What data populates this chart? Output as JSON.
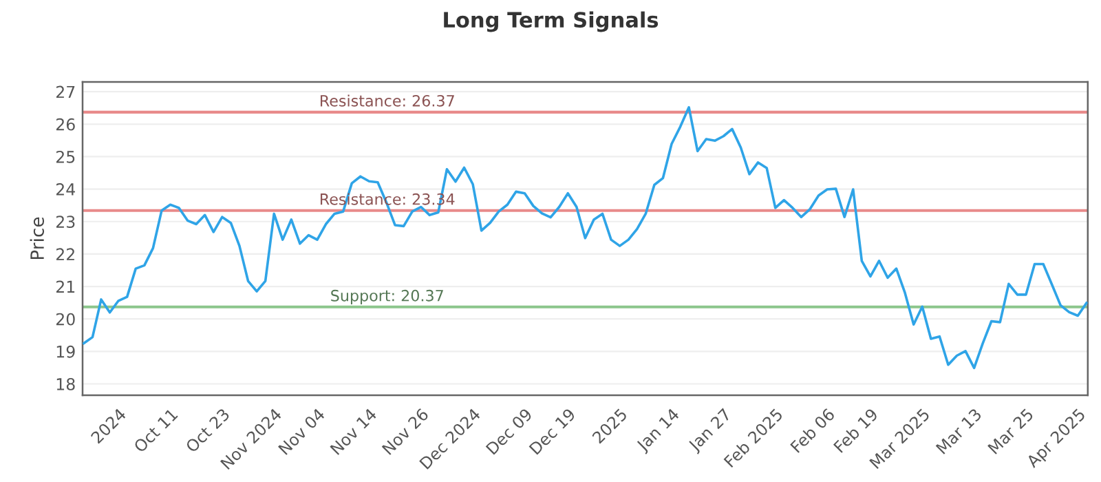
{
  "chart_data": {
    "type": "line",
    "title": "Long Term Signals",
    "ylabel": "Price",
    "categories": [
      null,
      null,
      null,
      null,
      "2024",
      null,
      null,
      null,
      null,
      null,
      "Oct 11",
      null,
      null,
      null,
      null,
      null,
      "Oct 23",
      null,
      null,
      null,
      null,
      null,
      "Nov 2024",
      null,
      null,
      null,
      null,
      "Nov 04",
      null,
      null,
      null,
      null,
      null,
      "Nov 14",
      null,
      null,
      null,
      null,
      null,
      "Nov 26",
      null,
      null,
      null,
      null,
      null,
      "Dec 2024",
      null,
      null,
      null,
      null,
      null,
      "Dec 09",
      null,
      null,
      null,
      null,
      "Dec 19",
      null,
      null,
      null,
      null,
      null,
      "2025",
      null,
      null,
      null,
      null,
      null,
      "Jan 14",
      null,
      null,
      null,
      null,
      null,
      "Jan 27",
      null,
      null,
      null,
      null,
      null,
      "Feb 2025",
      null,
      null,
      null,
      null,
      null,
      "Feb 06",
      null,
      null,
      null,
      null,
      "Feb 19",
      null,
      null,
      null,
      null,
      null,
      "Mar 2025",
      null,
      null,
      null,
      null,
      null,
      "Mar 13",
      null,
      null,
      null,
      null,
      null,
      "Mar 25",
      null,
      null,
      null,
      null,
      null,
      "Apr 2025",
      null
    ],
    "series": [
      {
        "color": "#2fa4e7",
        "values": [
          19.25,
          19.44,
          20.6,
          20.2,
          20.56,
          20.68,
          21.55,
          21.65,
          22.18,
          23.34,
          23.52,
          23.42,
          23.03,
          22.92,
          23.2,
          22.68,
          23.14,
          22.96,
          22.25,
          21.17,
          20.85,
          21.17,
          23.24,
          22.44,
          23.06,
          22.32,
          22.58,
          22.44,
          22.92,
          23.24,
          23.31,
          24.18,
          24.39,
          24.24,
          24.21,
          23.59,
          22.89,
          22.86,
          23.31,
          23.45,
          23.2,
          23.28,
          24.61,
          24.23,
          24.66,
          24.15,
          22.72,
          22.96,
          23.31,
          23.52,
          23.92,
          23.87,
          23.48,
          23.25,
          23.13,
          23.45,
          23.87,
          23.45,
          22.49,
          23.06,
          23.24,
          22.44,
          22.25,
          22.44,
          22.77,
          23.24,
          24.13,
          24.34,
          25.39,
          25.92,
          26.52,
          25.17,
          25.54,
          25.49,
          25.63,
          25.85,
          25.28,
          24.46,
          24.82,
          24.65,
          23.42,
          23.66,
          23.42,
          23.14,
          23.38,
          23.8,
          23.99,
          24.01,
          23.14,
          23.99,
          21.79,
          21.31,
          21.79,
          21.27,
          21.55,
          20.8,
          19.83,
          20.38,
          19.39,
          19.46,
          18.59,
          18.87,
          19.01,
          18.49,
          19.25,
          19.93,
          19.9,
          21.08,
          20.75,
          20.75,
          21.69,
          21.69,
          21.06,
          20.42,
          20.21,
          20.1,
          20.49
        ]
      }
    ],
    "ylim": [
      17.65,
      27.3
    ],
    "yticks": [
      18,
      19,
      20,
      21,
      22,
      23,
      24,
      25,
      26,
      27
    ],
    "grid": "y",
    "ref_lines": [
      {
        "axis": "y",
        "value": 26.37,
        "label": "Resistance: 26.37",
        "color": "#e88a8a"
      },
      {
        "axis": "y",
        "value": 23.34,
        "label": "Resistance: 23.34",
        "color": "#e88a8a"
      },
      {
        "axis": "y",
        "value": 20.37,
        "label": "Support: 20.37",
        "color": "#8cc68c"
      }
    ]
  }
}
